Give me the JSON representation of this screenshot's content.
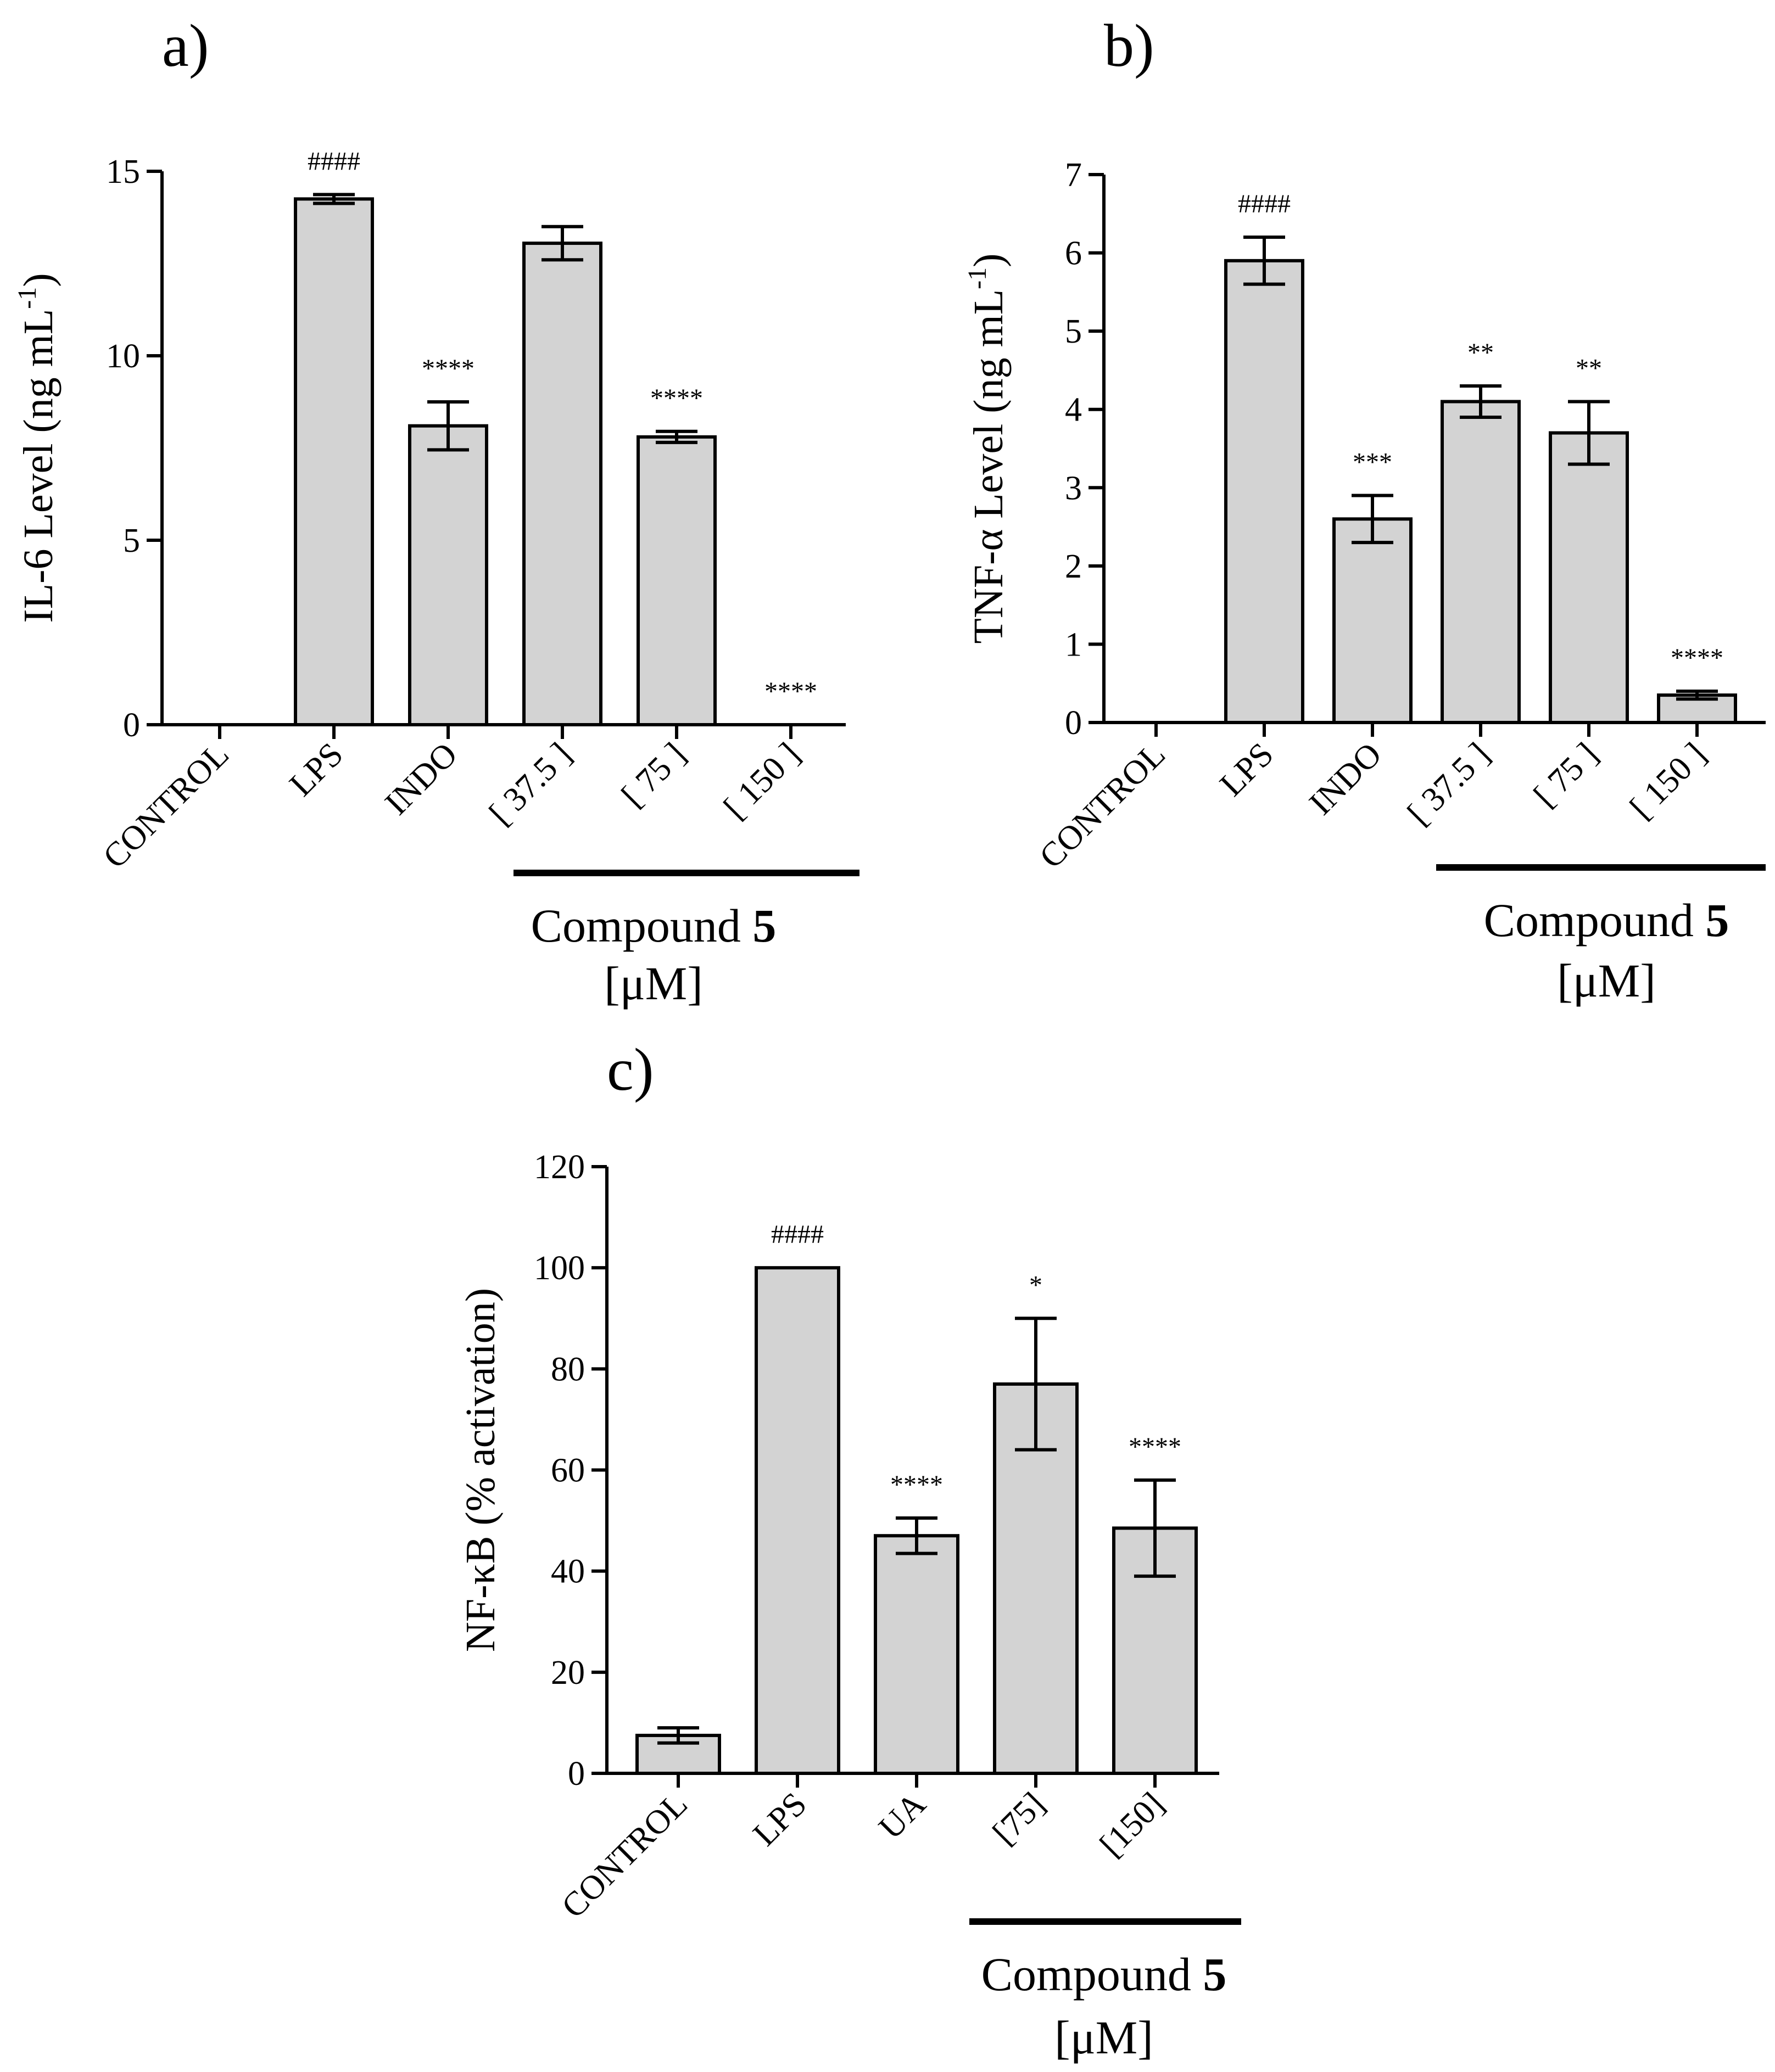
{
  "figure": {
    "bar_color": "#d3d3d3",
    "line_color": "#000000",
    "background": "#ffffff"
  },
  "chart_data": [
    {
      "panel": "a)",
      "type": "bar",
      "ylabel": "IL-6 Level (ng mL",
      "ylabel_sup": "-1",
      "ylabel_end": ")",
      "ylim": [
        0,
        15
      ],
      "yticks": [
        0,
        5,
        10,
        15
      ],
      "categories": [
        "CONTROL",
        "LPS",
        "INDO",
        "[ 37.5 ]",
        "[ 75 ]",
        "[ 150 ]"
      ],
      "values": [
        0,
        14.25,
        8.1,
        13.05,
        7.8,
        0
      ],
      "errors": [
        0,
        0.12,
        0.65,
        0.45,
        0.15,
        0
      ],
      "annotations": [
        "",
        "####",
        "****",
        "",
        "****",
        "****"
      ],
      "group": {
        "from": 3,
        "to": 5,
        "label": "Compound ",
        "label_bold": "5",
        "unit": "[μM]"
      }
    },
    {
      "panel": "b)",
      "type": "bar",
      "ylabel": "TNF-α Level (ng mL",
      "ylabel_sup": "-1",
      "ylabel_end": ")",
      "ylim": [
        0,
        7
      ],
      "yticks": [
        0,
        1,
        2,
        3,
        4,
        5,
        6,
        7
      ],
      "categories": [
        "CONTROL",
        "LPS",
        "INDO",
        "[ 37.5 ]",
        "[ 75 ]",
        "[ 150 ]"
      ],
      "values": [
        0,
        5.9,
        2.6,
        4.1,
        3.7,
        0.35
      ],
      "errors": [
        0,
        0.3,
        0.3,
        0.2,
        0.4,
        0.05
      ],
      "annotations": [
        "",
        "####",
        "***",
        "**",
        "**",
        "****"
      ],
      "group": {
        "from": 3,
        "to": 5,
        "label": "Compound ",
        "label_bold": "5",
        "unit": "[μM]"
      }
    },
    {
      "panel": "c)",
      "type": "bar",
      "ylabel": "NF-κB (% activation)",
      "ylabel_sup": "",
      "ylabel_end": "",
      "ylim": [
        0,
        120
      ],
      "yticks": [
        0,
        20,
        40,
        60,
        80,
        100,
        120
      ],
      "categories": [
        "CONTROL",
        "LPS",
        "UA",
        "[75]",
        "[150]"
      ],
      "values": [
        7.5,
        100,
        47,
        77,
        48.5
      ],
      "errors": [
        1.5,
        0,
        3.5,
        13,
        9.5
      ],
      "annotations": [
        "",
        "####",
        "****",
        "*",
        "****"
      ],
      "group": {
        "from": 3,
        "to": 4,
        "label": "Compound ",
        "label_bold": "5",
        "unit": "[μM]"
      }
    }
  ]
}
